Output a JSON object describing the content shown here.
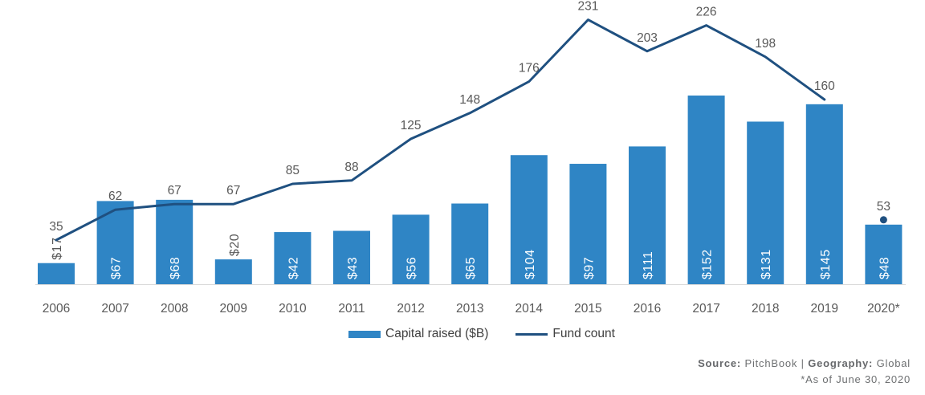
{
  "chart_data": {
    "type": "combo-bar-line",
    "title": "",
    "categories": [
      "2006",
      "2007",
      "2008",
      "2009",
      "2010",
      "2011",
      "2012",
      "2013",
      "2014",
      "2015",
      "2016",
      "2017",
      "2018",
      "2019",
      "2020*"
    ],
    "series": [
      {
        "name": "Capital raised ($B)",
        "type": "bar",
        "color": "#2F85C5",
        "values": [
          17,
          67,
          68,
          20,
          42,
          43,
          56,
          65,
          104,
          97,
          111,
          152,
          131,
          145,
          48
        ],
        "labels": [
          "$17",
          "$67",
          "$68",
          "$20",
          "$42",
          "$43",
          "$56",
          "$65",
          "$104",
          "$97",
          "$111",
          "$152",
          "$131",
          "$145",
          "$48"
        ],
        "label_color_inside": "#FFFFFF",
        "label_color_outside": "#595959"
      },
      {
        "name": "Fund count",
        "type": "line",
        "color": "#1F5080",
        "values": [
          35,
          62,
          67,
          67,
          85,
          88,
          125,
          148,
          176,
          231,
          203,
          226,
          198,
          160,
          53
        ],
        "labels": [
          "35",
          "62",
          "67",
          "67",
          "85",
          "88",
          "125",
          "148",
          "176",
          "231",
          "203",
          "226",
          "198",
          "160",
          "53"
        ],
        "label_color": "#595959",
        "connected_through_index": 13,
        "last_point_style": "dot"
      }
    ],
    "legend": [
      {
        "label": "Capital raised ($B)",
        "marker": "bar"
      },
      {
        "label": "Fund count",
        "marker": "line"
      }
    ],
    "legend_position": "bottom-center",
    "grid": false,
    "axes": {
      "x_label_color": "#595959",
      "baseline_color": "#D9D9D9",
      "y_axis_visible": false
    },
    "bar_axis_range": [
      0,
      160
    ],
    "line_axis_range": [
      0,
      250
    ]
  },
  "source": {
    "bold1": "Source:",
    "text1": " PitchBook | ",
    "bold2": "Geography:",
    "text2": " Global",
    "line2": "*As of June 30, 2020"
  }
}
